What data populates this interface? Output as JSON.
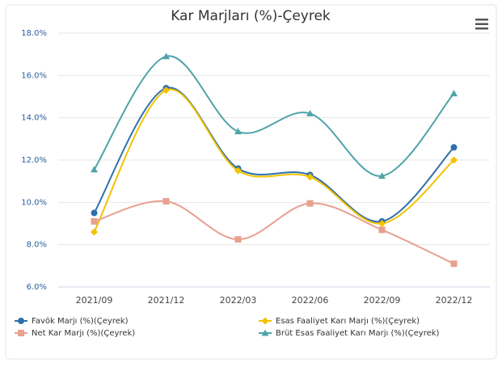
{
  "chart_data": {
    "type": "line",
    "title": "Kar Marjları (%)-Çeyrek",
    "categories": [
      "2021/09",
      "2021/12",
      "2022/03",
      "2022/06",
      "2022/09",
      "2022/12"
    ],
    "series": [
      {
        "name": "Favök Marjı (%)(Çeyrek)",
        "color": "#2f6fab",
        "marker": "circle",
        "values": [
          9.5,
          15.4,
          11.6,
          11.3,
          9.1,
          12.6
        ]
      },
      {
        "name": "Esas Faaliyet Karı Marjı (%)(Çeyrek)",
        "color": "#f2c200",
        "marker": "diamond",
        "values": [
          8.6,
          15.3,
          11.5,
          11.2,
          9.0,
          12.0
        ]
      },
      {
        "name": "Net Kar Marjı (%)(Çeyrek)",
        "color": "#e8a08f",
        "marker": "square",
        "values": [
          9.1,
          10.05,
          8.25,
          9.95,
          8.7,
          7.1
        ]
      },
      {
        "name": "Brüt Esas Faaliyet Karı Marjı (%)(Çeyrek)",
        "color": "#4ea4a9",
        "marker": "triangle",
        "values": [
          11.55,
          16.9,
          13.35,
          14.2,
          11.25,
          15.15
        ]
      }
    ],
    "ylim": [
      6,
      18
    ],
    "yticks": [
      {
        "value": 6,
        "label": "6.0%"
      },
      {
        "value": 8,
        "label": "8.0%"
      },
      {
        "value": 10,
        "label": "10.0%"
      },
      {
        "value": 12,
        "label": "12.0%"
      },
      {
        "value": 14,
        "label": "14.0%"
      },
      {
        "value": 16,
        "label": "16.0%"
      },
      {
        "value": 18,
        "label": "18.0%"
      }
    ],
    "grid": true
  }
}
